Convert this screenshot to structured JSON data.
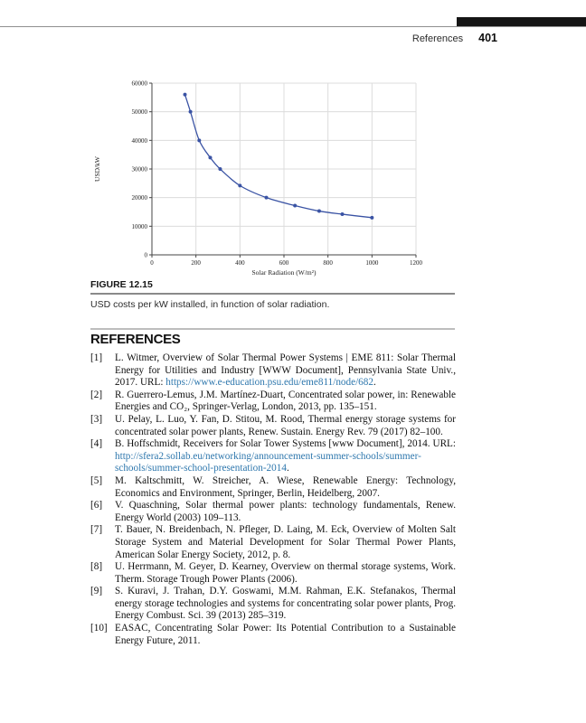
{
  "header": {
    "section_title": "References",
    "page_number": "401"
  },
  "figure": {
    "label": "FIGURE 12.15",
    "caption": "USD costs per kW installed, in function of solar radiation."
  },
  "chart_data": {
    "type": "line",
    "title": "",
    "xlabel": "Solar Radiation (W/m²)",
    "ylabel": "USD/kW",
    "x": [
      150,
      175,
      215,
      265,
      310,
      400,
      520,
      650,
      760,
      865,
      1000
    ],
    "y": [
      56000,
      50000,
      40000,
      34000,
      30000,
      24200,
      20000,
      17200,
      15300,
      14200,
      13000
    ],
    "xlim": [
      0,
      1200
    ],
    "ylim": [
      0,
      60000
    ],
    "xticks": [
      0,
      200,
      400,
      600,
      800,
      1000,
      1200
    ],
    "yticks": [
      0,
      10000,
      20000,
      30000,
      40000,
      50000,
      60000
    ],
    "grid": true,
    "legend": "none",
    "line_color": "#3a53a4"
  },
  "references": {
    "heading": "REFERENCES",
    "items": [
      {
        "number": "[1]",
        "segments": [
          {
            "text": "L. Witmer, Overview of Solar Thermal Power Systems | EME 811: Solar Thermal Energy for Utilities and Industry [WWW Document], Pennsylvania State Univ., 2017. URL: "
          },
          {
            "text": "https://www.e-education.psu.edu/eme811/node/682",
            "link": true
          },
          {
            "text": "."
          }
        ]
      },
      {
        "number": "[2]",
        "segments": [
          {
            "text": "R. Guerrero-Lemus, J.M. Martínez-Duart, Concentrated solar power, in: Renewable Energies and CO₂, Springer-Verlag, London, 2013, pp. 135–151."
          }
        ]
      },
      {
        "number": "[3]",
        "segments": [
          {
            "text": "U. Pelay, L. Luo, Y. Fan, D. Stitou, M. Rood, Thermal energy storage systems for concentrated solar power plants, Renew. Sustain. Energy Rev. 79 (2017) 82–100."
          }
        ]
      },
      {
        "number": "[4]",
        "segments": [
          {
            "text": "B. Hoffschmidt, Receivers for Solar Tower Systems [www Document], 2014. URL: "
          },
          {
            "text": "http://sfera2.sollab.eu/networking/announcement-summer-schools/summer-schools/summer-school-presentation-2014",
            "link": true
          },
          {
            "text": "."
          }
        ]
      },
      {
        "number": "[5]",
        "segments": [
          {
            "text": "M. Kaltschmitt, W. Streicher, A. Wiese, Renewable Energy: Technology, Economics and Environment, Springer, Berlin, Heidelberg, 2007."
          }
        ]
      },
      {
        "number": "[6]",
        "segments": [
          {
            "text": "V. Quaschning, Solar thermal power plants: technology fundamentals, Renew. Energy World (2003) 109–113."
          }
        ]
      },
      {
        "number": "[7]",
        "segments": [
          {
            "text": "T. Bauer, N. Breidenbach, N. Pfleger, D. Laing, M. Eck, Overview of Molten Salt Storage System and Material Development for Solar Thermal Power Plants, American Solar Energy Society, 2012, p. 8."
          }
        ]
      },
      {
        "number": "[8]",
        "segments": [
          {
            "text": "U. Herrmann, M. Geyer, D. Kearney, Overview on thermal storage systems, Work. Therm. Storage Trough Power Plants (2006)."
          }
        ]
      },
      {
        "number": "[9]",
        "segments": [
          {
            "text": "S. Kuravi, J. Trahan, D.Y. Goswami, M.M. Rahman, E.K. Stefanakos, Thermal energy storage technologies and systems for concentrating solar power plants, Prog. Energy Combust. Sci. 39 (2013) 285–319."
          }
        ]
      },
      {
        "number": "[10]",
        "segments": [
          {
            "text": "EASAC, Concentrating Solar Power: Its Potential Contribution to a Sustainable Energy Future, 2011."
          }
        ]
      }
    ]
  }
}
